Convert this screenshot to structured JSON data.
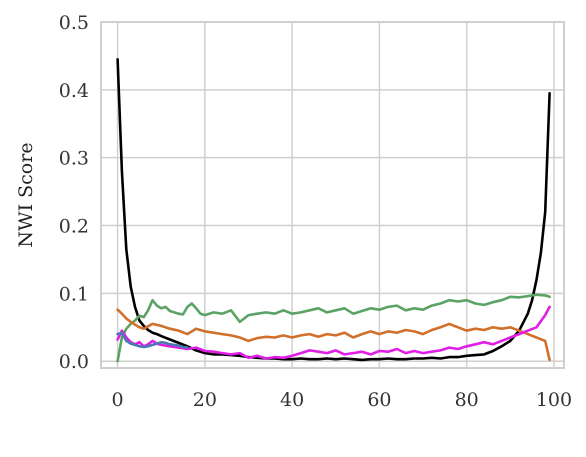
{
  "chart_data": {
    "type": "line",
    "xlabel": "",
    "ylabel": "NWI Score",
    "xlim": [
      -3.8,
      102.3
    ],
    "ylim": [
      -0.01,
      0.5
    ],
    "xticks": [
      "0",
      "20",
      "40",
      "60",
      "80",
      "100"
    ],
    "yticks": [
      "0.0",
      "0.1",
      "0.2",
      "0.3",
      "0.4",
      "0.5"
    ],
    "grid": true,
    "legend": "none",
    "series": [
      {
        "color": "#000000",
        "x": [
          0,
          1,
          2,
          3,
          4,
          5,
          6,
          7,
          8,
          9,
          10,
          12,
          14,
          16,
          18,
          20,
          22,
          24,
          26,
          28,
          30,
          32,
          34,
          36,
          38,
          40,
          42,
          44,
          46,
          48,
          50,
          52,
          54,
          56,
          58,
          60,
          62,
          64,
          66,
          68,
          70,
          72,
          74,
          76,
          78,
          80,
          82,
          84,
          86,
          88,
          90,
          92,
          94,
          95,
          96,
          97,
          98,
          99
        ],
        "y": [
          0.445,
          0.28,
          0.165,
          0.11,
          0.08,
          0.06,
          0.052,
          0.046,
          0.042,
          0.04,
          0.037,
          0.032,
          0.027,
          0.022,
          0.016,
          0.012,
          0.01,
          0.01,
          0.009,
          0.008,
          0.006,
          0.005,
          0.004,
          0.004,
          0.003,
          0.003,
          0.004,
          0.003,
          0.003,
          0.004,
          0.003,
          0.004,
          0.003,
          0.002,
          0.003,
          0.003,
          0.004,
          0.003,
          0.003,
          0.004,
          0.004,
          0.005,
          0.004,
          0.006,
          0.006,
          0.008,
          0.009,
          0.01,
          0.015,
          0.022,
          0.03,
          0.045,
          0.07,
          0.09,
          0.12,
          0.16,
          0.22,
          0.395
        ]
      },
      {
        "color": "#5aa364",
        "x": [
          0,
          1,
          2,
          3,
          4,
          5,
          6,
          7,
          8,
          9,
          10,
          11,
          12,
          13,
          14,
          15,
          16,
          17,
          18,
          19,
          20,
          22,
          24,
          26,
          28,
          30,
          32,
          34,
          36,
          38,
          40,
          42,
          44,
          46,
          48,
          50,
          52,
          54,
          56,
          58,
          60,
          62,
          64,
          66,
          68,
          70,
          72,
          74,
          76,
          78,
          80,
          82,
          84,
          86,
          88,
          90,
          92,
          94,
          96,
          98,
          99
        ],
        "y": [
          0.0,
          0.035,
          0.048,
          0.055,
          0.06,
          0.067,
          0.065,
          0.075,
          0.09,
          0.082,
          0.078,
          0.08,
          0.074,
          0.072,
          0.07,
          0.069,
          0.08,
          0.085,
          0.078,
          0.07,
          0.068,
          0.072,
          0.07,
          0.075,
          0.058,
          0.068,
          0.07,
          0.072,
          0.07,
          0.075,
          0.07,
          0.072,
          0.075,
          0.078,
          0.072,
          0.075,
          0.078,
          0.07,
          0.074,
          0.078,
          0.076,
          0.08,
          0.082,
          0.075,
          0.078,
          0.076,
          0.082,
          0.085,
          0.09,
          0.088,
          0.09,
          0.085,
          0.083,
          0.087,
          0.09,
          0.095,
          0.094,
          0.096,
          0.098,
          0.097,
          0.095
        ]
      },
      {
        "color": "#d0702a",
        "x": [
          0,
          1,
          2,
          3,
          4,
          5,
          6,
          8,
          10,
          12,
          14,
          16,
          18,
          20,
          22,
          24,
          26,
          28,
          30,
          32,
          34,
          36,
          38,
          40,
          42,
          44,
          46,
          48,
          50,
          52,
          54,
          56,
          58,
          60,
          62,
          64,
          66,
          68,
          70,
          72,
          74,
          76,
          78,
          80,
          82,
          84,
          86,
          88,
          90,
          92,
          94,
          96,
          98,
          99
        ],
        "y": [
          0.076,
          0.07,
          0.063,
          0.058,
          0.054,
          0.05,
          0.048,
          0.055,
          0.052,
          0.048,
          0.045,
          0.04,
          0.048,
          0.044,
          0.042,
          0.04,
          0.038,
          0.035,
          0.03,
          0.034,
          0.036,
          0.035,
          0.038,
          0.035,
          0.038,
          0.04,
          0.036,
          0.04,
          0.038,
          0.042,
          0.035,
          0.04,
          0.044,
          0.04,
          0.044,
          0.042,
          0.046,
          0.044,
          0.04,
          0.046,
          0.05,
          0.055,
          0.05,
          0.045,
          0.048,
          0.046,
          0.05,
          0.048,
          0.05,
          0.045,
          0.04,
          0.035,
          0.03,
          0.002
        ]
      },
      {
        "color": "#e01ee6",
        "x": [
          0,
          1,
          2,
          3,
          4,
          5,
          6,
          7,
          8,
          9,
          10,
          12,
          14,
          16,
          18,
          20,
          22,
          24,
          26,
          28,
          30,
          32,
          34,
          36,
          38,
          40,
          42,
          44,
          46,
          48,
          50,
          52,
          54,
          56,
          58,
          60,
          62,
          64,
          66,
          68,
          70,
          72,
          74,
          76,
          78,
          80,
          82,
          84,
          86,
          88,
          90,
          92,
          94,
          96,
          98,
          99
        ],
        "y": [
          0.032,
          0.045,
          0.035,
          0.028,
          0.025,
          0.028,
          0.022,
          0.025,
          0.03,
          0.026,
          0.024,
          0.022,
          0.02,
          0.018,
          0.02,
          0.015,
          0.014,
          0.012,
          0.01,
          0.012,
          0.005,
          0.008,
          0.004,
          0.006,
          0.005,
          0.008,
          0.012,
          0.016,
          0.014,
          0.012,
          0.016,
          0.01,
          0.012,
          0.014,
          0.01,
          0.015,
          0.014,
          0.018,
          0.012,
          0.015,
          0.012,
          0.014,
          0.016,
          0.02,
          0.018,
          0.022,
          0.025,
          0.028,
          0.025,
          0.03,
          0.035,
          0.04,
          0.045,
          0.05,
          0.068,
          0.08
        ]
      },
      {
        "color": "#4a78b0",
        "x": [
          0,
          1,
          2,
          3,
          4,
          5,
          6,
          7,
          8,
          9,
          10,
          11,
          12,
          13,
          14,
          15,
          16
        ],
        "y": [
          0.04,
          0.042,
          0.03,
          0.026,
          0.024,
          0.022,
          0.021,
          0.022,
          0.024,
          0.026,
          0.028,
          0.027,
          0.025,
          0.024,
          0.023,
          0.021,
          0.02
        ]
      }
    ]
  }
}
